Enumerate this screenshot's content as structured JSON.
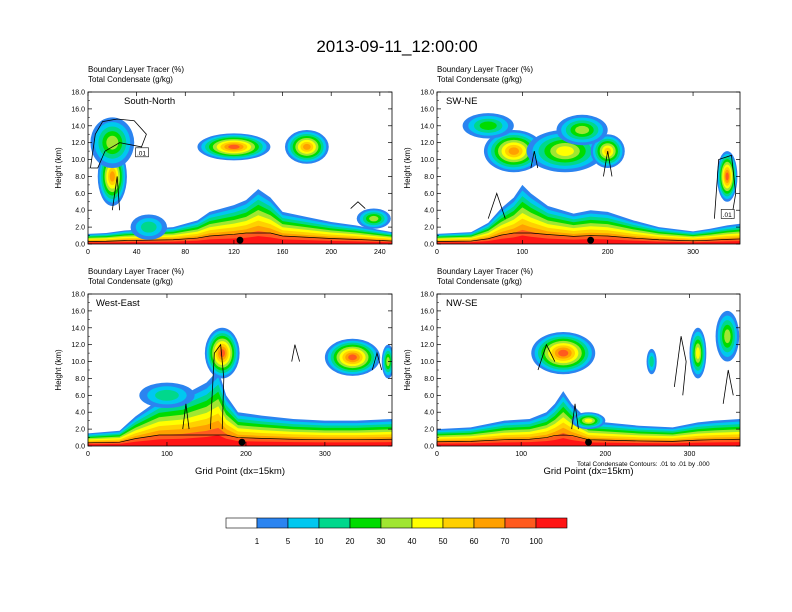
{
  "title": "2013-09-11_12:00:00",
  "colors": {
    "levels": [
      "#ffffff",
      "#2b84f0",
      "#00c8f0",
      "#00d88c",
      "#00dc00",
      "#a0e632",
      "#ffff00",
      "#ffd000",
      "#ffa000",
      "#ff5a1e",
      "#ff1414"
    ],
    "contour": "#000000",
    "marker": "#000000"
  },
  "colorbar": {
    "labels": [
      "1",
      "5",
      "10",
      "20",
      "30",
      "40",
      "50",
      "60",
      "70",
      "100"
    ]
  },
  "footnote": "Total Condensate Contours: .01 to .01 by .000",
  "chart_data": [
    {
      "type": "heatmap",
      "id": "south-north",
      "label": "South-North",
      "title_line1": "Boundary Layer Tracer   (%)",
      "title_line2": "Total Condensate   (g/kg)",
      "ylabel": "Height (km)",
      "xlabel": "",
      "xlim": [
        0,
        250
      ],
      "ylim": [
        0,
        18
      ],
      "xticks": [
        0,
        40,
        80,
        120,
        160,
        200,
        240
      ],
      "yticks": [
        "0.0",
        "2.0",
        "4.0",
        "6.0",
        "8.0",
        "10.0",
        "12.0",
        "14.0",
        "16.0",
        "18.0"
      ],
      "marker_x": 125,
      "contour_label": ".01",
      "contour_label_pos": [
        44,
        10.8
      ],
      "boundary_layer": [
        [
          0,
          1.2
        ],
        [
          15,
          1.3
        ],
        [
          30,
          1.6
        ],
        [
          50,
          1.8
        ],
        [
          70,
          2.0
        ],
        [
          90,
          2.8
        ],
        [
          100,
          3.8
        ],
        [
          110,
          4.2
        ],
        [
          120,
          4.6
        ],
        [
          130,
          5.2
        ],
        [
          140,
          6.5
        ],
        [
          150,
          5.5
        ],
        [
          160,
          3.8
        ],
        [
          180,
          3.2
        ],
        [
          200,
          2.6
        ],
        [
          220,
          2.2
        ],
        [
          235,
          1.8
        ],
        [
          250,
          1.4
        ]
      ],
      "cores": [
        [
          20,
          8,
          12,
          3.5,
          8
        ],
        [
          20,
          12,
          18,
          3,
          5
        ],
        [
          120,
          11.5,
          30,
          1.6,
          9
        ],
        [
          180,
          11.5,
          18,
          2,
          8
        ],
        [
          235,
          3,
          14,
          1.2,
          5
        ],
        [
          50,
          2,
          15,
          1.5,
          3
        ]
      ],
      "contours": [
        [
          [
            2,
            9
          ],
          [
            6,
            13
          ],
          [
            12,
            14.5
          ],
          [
            24,
            14.8
          ],
          [
            38,
            14.6
          ],
          [
            48,
            13
          ],
          [
            44,
            11.5
          ],
          [
            26,
            12
          ],
          [
            14,
            11
          ],
          [
            8,
            9
          ],
          [
            2,
            9
          ]
        ],
        [
          [
            20,
            4
          ],
          [
            24,
            8
          ],
          [
            26,
            4
          ]
        ],
        [
          [
            216,
            4.2
          ],
          [
            222,
            5
          ],
          [
            228,
            4.2
          ]
        ]
      ]
    },
    {
      "type": "heatmap",
      "id": "sw-ne",
      "label": "SW-NE",
      "title_line1": "Boundary Layer Tracer   (%)",
      "title_line2": "Total Condensate   (g/kg)",
      "ylabel": "Height (km)",
      "xlabel": "",
      "xlim": [
        0,
        355
      ],
      "ylim": [
        0,
        18
      ],
      "xticks": [
        0,
        100,
        200,
        300
      ],
      "yticks": [
        "0.0",
        "2.0",
        "4.0",
        "6.0",
        "8.0",
        "10.0",
        "12.0",
        "14.0",
        "16.0",
        "18.0"
      ],
      "marker_x": 180,
      "contour_label": ".01",
      "contour_label_pos": [
        340,
        3.5
      ],
      "boundary_layer": [
        [
          0,
          1.2
        ],
        [
          40,
          1.4
        ],
        [
          60,
          2.5
        ],
        [
          75,
          4.2
        ],
        [
          90,
          5.5
        ],
        [
          100,
          7
        ],
        [
          110,
          6
        ],
        [
          130,
          4.5
        ],
        [
          160,
          3.6
        ],
        [
          180,
          4
        ],
        [
          200,
          3.8
        ],
        [
          230,
          2.8
        ],
        [
          260,
          2
        ],
        [
          300,
          1.5
        ],
        [
          320,
          1.8
        ],
        [
          340,
          2.2
        ],
        [
          355,
          2.4
        ]
      ],
      "cores": [
        [
          90,
          11,
          35,
          2.5,
          8
        ],
        [
          150,
          11,
          45,
          2.5,
          6
        ],
        [
          200,
          11,
          20,
          2,
          7
        ],
        [
          340,
          8,
          12,
          3,
          9
        ],
        [
          60,
          14,
          30,
          1.5,
          4
        ],
        [
          170,
          13.5,
          30,
          1.8,
          5
        ]
      ],
      "contours": [
        [
          [
            110,
            9
          ],
          [
            114,
            11
          ],
          [
            118,
            9
          ]
        ],
        [
          [
            195,
            8
          ],
          [
            200,
            11
          ],
          [
            205,
            8
          ]
        ],
        [
          [
            325,
            3
          ],
          [
            330,
            10
          ],
          [
            345,
            10.5
          ],
          [
            350,
            6
          ],
          [
            345,
            3
          ]
        ],
        [
          [
            60,
            3
          ],
          [
            70,
            6
          ],
          [
            80,
            3
          ]
        ]
      ]
    },
    {
      "type": "heatmap",
      "id": "west-east",
      "label": "West-East",
      "title_line1": "Boundary Layer Tracer   (%)",
      "title_line2": "Total Condensate   (g/kg)",
      "ylabel": "Height (km)",
      "xlabel": "Grid Point (dx=15km)",
      "xlim": [
        0,
        385
      ],
      "ylim": [
        0,
        18
      ],
      "xticks": [
        0,
        100,
        200,
        300
      ],
      "yticks": [
        "0.0",
        "2.0",
        "4.0",
        "6.0",
        "8.0",
        "10.0",
        "12.0",
        "14.0",
        "16.0",
        "18.0"
      ],
      "marker_x": 195,
      "contour_label": "",
      "contour_label_pos": [
        0,
        0
      ],
      "boundary_layer": [
        [
          0,
          1.5
        ],
        [
          40,
          1.8
        ],
        [
          60,
          3.5
        ],
        [
          90,
          5.5
        ],
        [
          120,
          6
        ],
        [
          150,
          7.5
        ],
        [
          165,
          9
        ],
        [
          175,
          6
        ],
        [
          190,
          4
        ],
        [
          220,
          3.6
        ],
        [
          260,
          3.2
        ],
        [
          300,
          3
        ],
        [
          340,
          3
        ],
        [
          385,
          3.2
        ]
      ],
      "cores": [
        [
          170,
          11,
          22,
          3,
          9
        ],
        [
          335,
          10.5,
          35,
          2.2,
          9
        ],
        [
          100,
          6,
          35,
          1.5,
          3
        ],
        [
          380,
          10,
          8,
          2,
          5
        ]
      ],
      "contours": [
        [
          [
            155,
            2
          ],
          [
            160,
            11
          ],
          [
            168,
            12
          ],
          [
            172,
            8
          ],
          [
            170,
            2
          ]
        ],
        [
          [
            258,
            10
          ],
          [
            262,
            12
          ],
          [
            268,
            10
          ]
        ],
        [
          [
            360,
            9
          ],
          [
            366,
            11
          ],
          [
            372,
            9
          ]
        ],
        [
          [
            120,
            2
          ],
          [
            124,
            5
          ],
          [
            128,
            2
          ]
        ]
      ]
    },
    {
      "type": "heatmap",
      "id": "nw-se",
      "label": "NW-SE",
      "title_line1": "Boundary Layer Tracer   (%)",
      "title_line2": "Total Condensate   (g/kg)",
      "ylabel": "Height (km)",
      "xlabel": "Grid Point (dx=15km)",
      "xlim": [
        0,
        360
      ],
      "ylim": [
        0,
        18
      ],
      "xticks": [
        0,
        100,
        200,
        300
      ],
      "yticks": [
        "0.0",
        "2.0",
        "4.0",
        "6.0",
        "8.0",
        "10.0",
        "12.0",
        "14.0",
        "16.0",
        "18.0"
      ],
      "marker_x": 180,
      "contour_label": "",
      "contour_label_pos": [
        0,
        0
      ],
      "boundary_layer": [
        [
          0,
          2
        ],
        [
          40,
          2.2
        ],
        [
          80,
          3
        ],
        [
          110,
          3.2
        ],
        [
          130,
          4
        ],
        [
          140,
          5
        ],
        [
          150,
          6.5
        ],
        [
          160,
          5
        ],
        [
          180,
          3
        ],
        [
          200,
          2.8
        ],
        [
          240,
          2.4
        ],
        [
          280,
          2.2
        ],
        [
          310,
          2.8
        ],
        [
          330,
          3
        ],
        [
          360,
          3.2
        ]
      ],
      "cores": [
        [
          150,
          11,
          38,
          2.5,
          9
        ],
        [
          255,
          10,
          6,
          1.5,
          3
        ],
        [
          310,
          11,
          10,
          3,
          6
        ],
        [
          345,
          13,
          14,
          3,
          5
        ],
        [
          180,
          3,
          20,
          1,
          6
        ]
      ],
      "contours": [
        [
          [
            120,
            9
          ],
          [
            130,
            12
          ],
          [
            140,
            10
          ]
        ],
        [
          [
            282,
            7
          ],
          [
            290,
            13
          ],
          [
            296,
            10
          ],
          [
            292,
            6
          ]
        ],
        [
          [
            340,
            5
          ],
          [
            346,
            9
          ],
          [
            352,
            6
          ]
        ],
        [
          [
            160,
            2
          ],
          [
            164,
            5
          ],
          [
            168,
            2
          ]
        ]
      ]
    }
  ]
}
